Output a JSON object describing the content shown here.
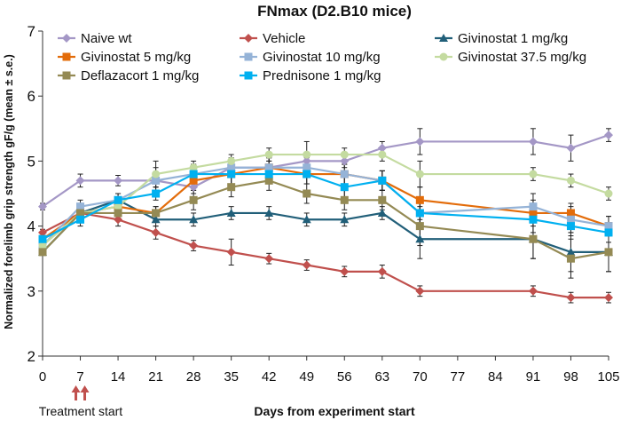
{
  "chart_data": {
    "type": "line",
    "title": "FNmax (D2.B10  mice)",
    "xlabel": "Days from experiment start",
    "ylabel": "Normalized forelimb grip strength gF/g (mean ± s.e.)",
    "xlim": [
      0,
      105
    ],
    "ylim": [
      2,
      7
    ],
    "xticks": [
      0,
      7,
      14,
      21,
      28,
      35,
      42,
      49,
      56,
      63,
      70,
      77,
      84,
      91,
      98,
      105
    ],
    "yticks": [
      2,
      3,
      4,
      5,
      6,
      7
    ],
    "annotation": "Treatment start",
    "annotation_day": 7,
    "series": [
      {
        "name": "Naive wt",
        "color": "#A497C6",
        "marker": "diamond",
        "x": [
          0,
          7,
          14,
          21,
          28,
          35,
          42,
          49,
          56,
          63,
          70,
          91,
          98,
          105
        ],
        "values": [
          4.3,
          4.7,
          4.7,
          4.7,
          4.6,
          4.9,
          4.9,
          5.0,
          5.0,
          5.2,
          5.3,
          5.3,
          5.2,
          5.4
        ],
        "errors": [
          0.05,
          0.1,
          0.08,
          0.1,
          0.1,
          0.1,
          0.1,
          0.1,
          0.1,
          0.1,
          0.2,
          0.2,
          0.2,
          0.1
        ]
      },
      {
        "name": "Vehicle",
        "color": "#C0504D",
        "marker": "diamond",
        "x": [
          0,
          7,
          14,
          21,
          28,
          35,
          42,
          49,
          56,
          63,
          70,
          91,
          98,
          105
        ],
        "values": [
          3.9,
          4.2,
          4.1,
          3.9,
          3.7,
          3.6,
          3.5,
          3.4,
          3.3,
          3.3,
          3.0,
          3.0,
          2.9,
          2.9
        ],
        "errors": [
          0.05,
          0.1,
          0.1,
          0.1,
          0.08,
          0.2,
          0.08,
          0.08,
          0.08,
          0.1,
          0.08,
          0.08,
          0.08,
          0.08
        ]
      },
      {
        "name": "Givinostat 1 mg/kg",
        "color": "#215F79",
        "marker": "triangle",
        "x": [
          0,
          7,
          14,
          21,
          28,
          35,
          42,
          49,
          56,
          63,
          70,
          91,
          98,
          105
        ],
        "values": [
          3.6,
          4.2,
          4.4,
          4.1,
          4.1,
          4.2,
          4.2,
          4.1,
          4.1,
          4.2,
          3.8,
          3.8,
          3.6,
          3.6
        ],
        "errors": [
          0.05,
          0.1,
          0.1,
          0.1,
          0.1,
          0.1,
          0.1,
          0.1,
          0.1,
          0.1,
          0.3,
          0.3,
          0.3,
          0.3
        ]
      },
      {
        "name": "Givinostat 5 mg/kg",
        "color": "#E36C0A",
        "marker": "square",
        "x": [
          0,
          7,
          14,
          21,
          28,
          35,
          42,
          49,
          56,
          63,
          70,
          91,
          98,
          105
        ],
        "values": [
          3.8,
          4.2,
          4.3,
          4.2,
          4.7,
          4.8,
          4.9,
          4.8,
          4.8,
          4.7,
          4.4,
          4.2,
          4.2,
          4.0
        ],
        "errors": [
          0.05,
          0.1,
          0.1,
          0.1,
          0.15,
          0.15,
          0.15,
          0.15,
          0.15,
          0.15,
          0.2,
          0.2,
          0.15,
          0.15
        ]
      },
      {
        "name": "Givinostat 10 mg/kg",
        "color": "#95B3D7",
        "marker": "square",
        "x": [
          0,
          7,
          14,
          21,
          28,
          35,
          42,
          49,
          56,
          63,
          70,
          91,
          98,
          105
        ],
        "values": [
          3.7,
          4.3,
          4.4,
          4.7,
          4.8,
          4.9,
          4.9,
          4.9,
          4.8,
          4.7,
          4.2,
          4.3,
          4.1,
          4.0
        ],
        "errors": [
          0.05,
          0.1,
          0.1,
          0.2,
          0.15,
          0.15,
          0.15,
          0.15,
          0.15,
          0.15,
          0.2,
          0.2,
          0.2,
          0.15
        ]
      },
      {
        "name": "Givinostat 37.5 mg/kg",
        "color": "#C4DBA0",
        "marker": "circle",
        "x": [
          0,
          7,
          14,
          21,
          28,
          35,
          42,
          49,
          56,
          63,
          70,
          91,
          98,
          105
        ],
        "values": [
          3.7,
          4.2,
          4.3,
          4.8,
          4.9,
          5.0,
          5.1,
          5.1,
          5.1,
          5.1,
          4.8,
          4.8,
          4.7,
          4.5
        ],
        "errors": [
          0.05,
          0.1,
          0.1,
          0.2,
          0.1,
          0.1,
          0.1,
          0.2,
          0.1,
          0.1,
          0.2,
          0.1,
          0.1,
          0.1
        ]
      },
      {
        "name": "Deflazacort 1 mg/kg",
        "color": "#948A54",
        "marker": "square",
        "x": [
          0,
          7,
          14,
          21,
          28,
          35,
          42,
          49,
          56,
          63,
          70,
          91,
          98,
          105
        ],
        "values": [
          3.6,
          4.2,
          4.2,
          4.2,
          4.4,
          4.6,
          4.7,
          4.5,
          4.4,
          4.4,
          4.0,
          3.8,
          3.5,
          3.6
        ],
        "errors": [
          0.05,
          0.1,
          0.1,
          0.1,
          0.15,
          0.15,
          0.15,
          0.15,
          0.15,
          0.15,
          0.3,
          0.3,
          0.3,
          0.3
        ]
      },
      {
        "name": "Prednisone 1 mg/kg",
        "color": "#00B0F0",
        "marker": "square",
        "x": [
          0,
          7,
          14,
          21,
          28,
          35,
          42,
          49,
          56,
          63,
          70,
          91,
          98,
          105
        ],
        "values": [
          3.8,
          4.1,
          4.4,
          4.5,
          4.8,
          4.8,
          4.8,
          4.8,
          4.6,
          4.7,
          4.2,
          4.1,
          4.0,
          3.9
        ],
        "errors": [
          0.05,
          0.1,
          0.1,
          0.1,
          0.15,
          0.15,
          0.15,
          0.15,
          0.15,
          0.15,
          0.2,
          0.2,
          0.15,
          0.15
        ]
      }
    ]
  }
}
